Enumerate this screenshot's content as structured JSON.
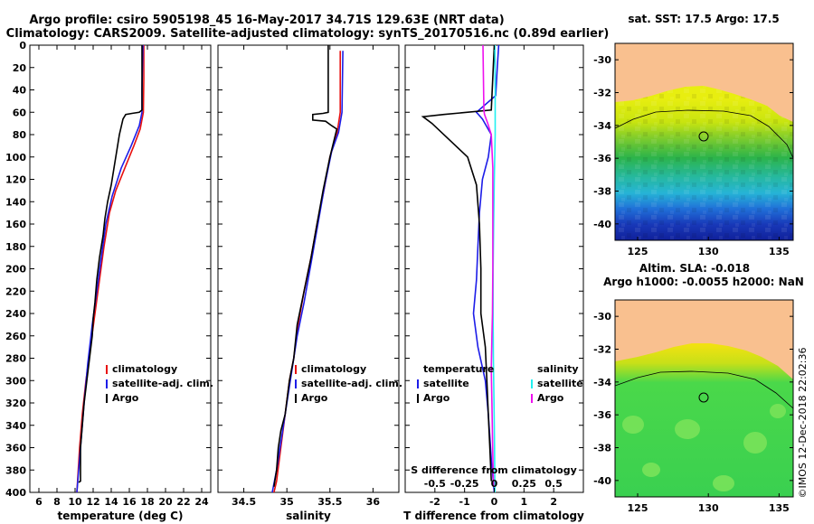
{
  "title": {
    "line1": "Argo profile: csiro 5905198_45 16-May-2017 34.71S 129.63E (NRT data)",
    "line2": "Climatology: CARS2009. Satellite-adjusted climatology: synTS_20170516.nc (0.89d earlier)"
  },
  "colors": {
    "climatology": "#e8100f",
    "satellite": "#1d1de8",
    "argo": "#000000",
    "sat_salinity": "#22f0f0",
    "argo_salinity": "#ee11ee"
  },
  "credit": "©IMOS 12-Dec-2018 22:02:36",
  "chart_data": [
    {
      "type": "line",
      "name": "temperature",
      "xlabel": "temperature (deg C)",
      "ylabel": "",
      "xlim": [
        5,
        25
      ],
      "ylim": [
        400,
        0
      ],
      "xticks": [
        6,
        8,
        10,
        12,
        14,
        16,
        18,
        20,
        22,
        24
      ],
      "xtick_labels": [
        "6",
        "8",
        "10",
        "12",
        "14",
        "16",
        "18",
        "20",
        "22",
        "24"
      ],
      "yticks": [
        0,
        20,
        40,
        60,
        80,
        100,
        120,
        140,
        160,
        180,
        200,
        220,
        240,
        260,
        280,
        300,
        320,
        340,
        360,
        380,
        400
      ],
      "ytick_labels": [
        "0",
        "20",
        "40",
        "60",
        "80",
        "100",
        "120",
        "140",
        "160",
        "180",
        "200",
        "220",
        "240",
        "260",
        "280",
        "300",
        "320",
        "340",
        "360",
        "380",
        "400"
      ],
      "legend": [
        "climatology",
        "satellite-adj. clim.",
        "Argo"
      ],
      "series": [
        {
          "name": "climatology",
          "color": "#e8100f",
          "points": [
            [
              17.6,
              0
            ],
            [
              17.6,
              30
            ],
            [
              17.55,
              60
            ],
            [
              17.2,
              75
            ],
            [
              16.5,
              90
            ],
            [
              15.5,
              110
            ],
            [
              14.5,
              130
            ],
            [
              13.8,
              150
            ],
            [
              13.2,
              180
            ],
            [
              12.7,
              210
            ],
            [
              12.2,
              240
            ],
            [
              11.7,
              270
            ],
            [
              11.2,
              300
            ],
            [
              10.8,
              330
            ],
            [
              10.5,
              360
            ],
            [
              10.2,
              400
            ]
          ]
        },
        {
          "name": "satellite-adj. clim.",
          "color": "#1d1de8",
          "points": [
            [
              17.5,
              0
            ],
            [
              17.4,
              40
            ],
            [
              17.4,
              60
            ],
            [
              17.1,
              72
            ],
            [
              16.2,
              90
            ],
            [
              15.1,
              110
            ],
            [
              14.1,
              135
            ],
            [
              13.4,
              160
            ],
            [
              12.9,
              190
            ],
            [
              12.4,
              220
            ],
            [
              11.9,
              250
            ],
            [
              11.4,
              285
            ],
            [
              11.0,
              320
            ],
            [
              10.7,
              350
            ],
            [
              10.4,
              380
            ],
            [
              10.2,
              400
            ]
          ]
        },
        {
          "name": "Argo",
          "color": "#000000",
          "points": [
            [
              17.4,
              0
            ],
            [
              17.4,
              58
            ],
            [
              17.1,
              60
            ],
            [
              16.3,
              61
            ],
            [
              15.6,
              62
            ],
            [
              15.3,
              66
            ],
            [
              14.9,
              80
            ],
            [
              14.6,
              95
            ],
            [
              14.3,
              110
            ],
            [
              14.0,
              125
            ],
            [
              13.6,
              140
            ],
            [
              13.3,
              155
            ],
            [
              13.1,
              170
            ],
            [
              12.7,
              190
            ],
            [
              12.4,
              210
            ],
            [
              12.2,
              230
            ],
            [
              12.0,
              245
            ],
            [
              11.9,
              260
            ],
            [
              11.6,
              280
            ],
            [
              11.3,
              300
            ],
            [
              11.0,
              320
            ],
            [
              10.8,
              340
            ],
            [
              10.6,
              360
            ],
            [
              10.6,
              390
            ],
            [
              10.4,
              391
            ]
          ]
        }
      ]
    },
    {
      "type": "line",
      "name": "salinity",
      "xlabel": "salinity",
      "ylabel": "",
      "xlim": [
        34.2,
        36.3
      ],
      "ylim": [
        400,
        0
      ],
      "xticks": [
        34.5,
        35,
        35.5,
        36
      ],
      "xtick_labels": [
        "34.5",
        "35",
        "35.5",
        "36"
      ],
      "legend": [
        "climatology",
        "satellite-adj. clim.",
        "Argo"
      ],
      "series": [
        {
          "name": "climatology",
          "color": "#e8100f",
          "points": [
            [
              35.62,
              5
            ],
            [
              35.62,
              60
            ],
            [
              35.58,
              80
            ],
            [
              35.5,
              100
            ],
            [
              35.43,
              130
            ],
            [
              35.35,
              160
            ],
            [
              35.28,
              190
            ],
            [
              35.2,
              220
            ],
            [
              35.13,
              250
            ],
            [
              35.08,
              280
            ],
            [
              35.03,
              300
            ],
            [
              34.98,
              330
            ],
            [
              34.93,
              360
            ],
            [
              34.88,
              390
            ],
            [
              34.85,
              400
            ]
          ]
        },
        {
          "name": "satellite-adj. clim.",
          "color": "#1d1de8",
          "points": [
            [
              35.65,
              5
            ],
            [
              35.64,
              60
            ],
            [
              35.6,
              78
            ],
            [
              35.52,
              95
            ],
            [
              35.44,
              125
            ],
            [
              35.36,
              160
            ],
            [
              35.28,
              195
            ],
            [
              35.2,
              230
            ],
            [
              35.12,
              260
            ],
            [
              35.06,
              290
            ],
            [
              35.0,
              320
            ],
            [
              34.94,
              350
            ],
            [
              34.88,
              380
            ],
            [
              34.83,
              400
            ]
          ]
        },
        {
          "name": "Argo",
          "color": "#000000",
          "points": [
            [
              35.48,
              0
            ],
            [
              35.48,
              60
            ],
            [
              35.42,
              61
            ],
            [
              35.3,
              62
            ],
            [
              35.3,
              67
            ],
            [
              35.45,
              68
            ],
            [
              35.52,
              72
            ],
            [
              35.58,
              75
            ],
            [
              35.5,
              100
            ],
            [
              35.42,
              130
            ],
            [
              35.35,
              160
            ],
            [
              35.28,
              190
            ],
            [
              35.2,
              220
            ],
            [
              35.12,
              250
            ],
            [
              35.08,
              280
            ],
            [
              35.03,
              300
            ],
            [
              34.98,
              330
            ],
            [
              34.93,
              345
            ],
            [
              34.9,
              360
            ],
            [
              34.88,
              380
            ],
            [
              34.85,
              395
            ]
          ]
        }
      ]
    },
    {
      "type": "line",
      "name": "difference",
      "xlabel": "T difference from climatology",
      "ylabel": "",
      "x2label": "S difference from climatology",
      "xlim": [
        -3,
        3
      ],
      "ylim": [
        400,
        0
      ],
      "xticks": [
        -2,
        -1,
        0,
        1,
        2
      ],
      "xtick_labels": [
        "-2",
        "-1",
        "0",
        "1",
        "2"
      ],
      "x2ticks": [
        -0.5,
        -0.25,
        0,
        0.25,
        0.5
      ],
      "x2tick_labels": [
        "-0.5",
        "-0.25",
        "0",
        "0.25",
        "0.5"
      ],
      "legend_temperature_title": "temperature",
      "legend_salinity_title": "salinity",
      "legend_temperature": [
        "satellite",
        "Argo"
      ],
      "legend_salinity": [
        "satellite",
        "Argo"
      ],
      "series": [
        {
          "name": "temperature satellite",
          "color": "#1d1de8",
          "points": [
            [
              0.15,
              0
            ],
            [
              0.1,
              20
            ],
            [
              0.05,
              45
            ],
            [
              -0.6,
              60
            ],
            [
              -0.4,
              66
            ],
            [
              -0.1,
              80
            ],
            [
              -0.2,
              100
            ],
            [
              -0.4,
              120
            ],
            [
              -0.5,
              150
            ],
            [
              -0.55,
              180
            ],
            [
              -0.6,
              210
            ],
            [
              -0.7,
              240
            ],
            [
              -0.55,
              270
            ],
            [
              -0.3,
              300
            ],
            [
              -0.2,
              330
            ],
            [
              -0.1,
              370
            ],
            [
              0.0,
              400
            ]
          ]
        },
        {
          "name": "temperature Argo",
          "color": "#000000",
          "points": [
            [
              0.0,
              0
            ],
            [
              -0.1,
              58
            ],
            [
              -1.7,
              62
            ],
            [
              -2.4,
              64
            ],
            [
              -2.1,
              70
            ],
            [
              -1.5,
              85
            ],
            [
              -0.9,
              100
            ],
            [
              -0.6,
              125
            ],
            [
              -0.5,
              160
            ],
            [
              -0.45,
              200
            ],
            [
              -0.45,
              240
            ],
            [
              -0.3,
              270
            ],
            [
              -0.25,
              300
            ],
            [
              -0.2,
              330
            ],
            [
              -0.15,
              360
            ],
            [
              -0.1,
              390
            ]
          ]
        },
        {
          "name": "salinity satellite",
          "color": "#22f0f0",
          "points": [
            [
              0.02,
              0
            ],
            [
              0.03,
              40
            ],
            [
              0.03,
              80
            ],
            [
              0.0,
              120
            ],
            [
              -0.02,
              160
            ],
            [
              -0.04,
              200
            ],
            [
              -0.04,
              240
            ],
            [
              -0.03,
              280
            ],
            [
              -0.01,
              320
            ],
            [
              0.01,
              360
            ],
            [
              0.02,
              400
            ]
          ]
        },
        {
          "name": "salinity Argo",
          "color": "#ee11ee",
          "points": [
            [
              -0.38,
              0
            ],
            [
              -0.35,
              58
            ],
            [
              -0.33,
              62
            ],
            [
              -0.22,
              70
            ],
            [
              -0.1,
              80
            ],
            [
              -0.05,
              110
            ],
            [
              -0.05,
              160
            ],
            [
              -0.05,
              200
            ],
            [
              -0.06,
              240
            ],
            [
              -0.08,
              260
            ],
            [
              -0.1,
              290
            ],
            [
              -0.08,
              320
            ],
            [
              -0.06,
              350
            ],
            [
              -0.04,
              380
            ],
            [
              -0.02,
              395
            ]
          ]
        }
      ]
    },
    {
      "type": "heatmap",
      "name": "sst-map",
      "title": "sat. SST: 17.5 Argo: 17.5",
      "xticks": [
        125,
        130,
        135
      ],
      "yticks": [
        -30,
        -32,
        -34,
        -36,
        -38,
        -40
      ],
      "xlim": [
        123.4,
        136
      ],
      "ylim": [
        -41,
        -29
      ],
      "ytick_labels": [
        "-30",
        "-32",
        "-34",
        "-36",
        "-38",
        "-40"
      ],
      "xtick_labels": [
        "125",
        "130",
        "135"
      ],
      "argo_location": [
        129.63,
        -34.71
      ]
    },
    {
      "type": "heatmap",
      "name": "sla-map",
      "title": "Altim. SLA: -0.018",
      "subtitle": "Argo h1000: -0.0055 h2000: NaN",
      "xticks": [
        125,
        130,
        135
      ],
      "yticks": [
        -30,
        -32,
        -34,
        -36,
        -38,
        -40
      ],
      "xlim": [
        123.4,
        136
      ],
      "ylim": [
        -41,
        -29
      ],
      "ytick_labels": [
        "-30",
        "-32",
        "-34",
        "-36",
        "-38",
        "-40"
      ],
      "xtick_labels": [
        "125",
        "130",
        "135"
      ],
      "argo_location": [
        129.63,
        -34.71
      ]
    }
  ]
}
